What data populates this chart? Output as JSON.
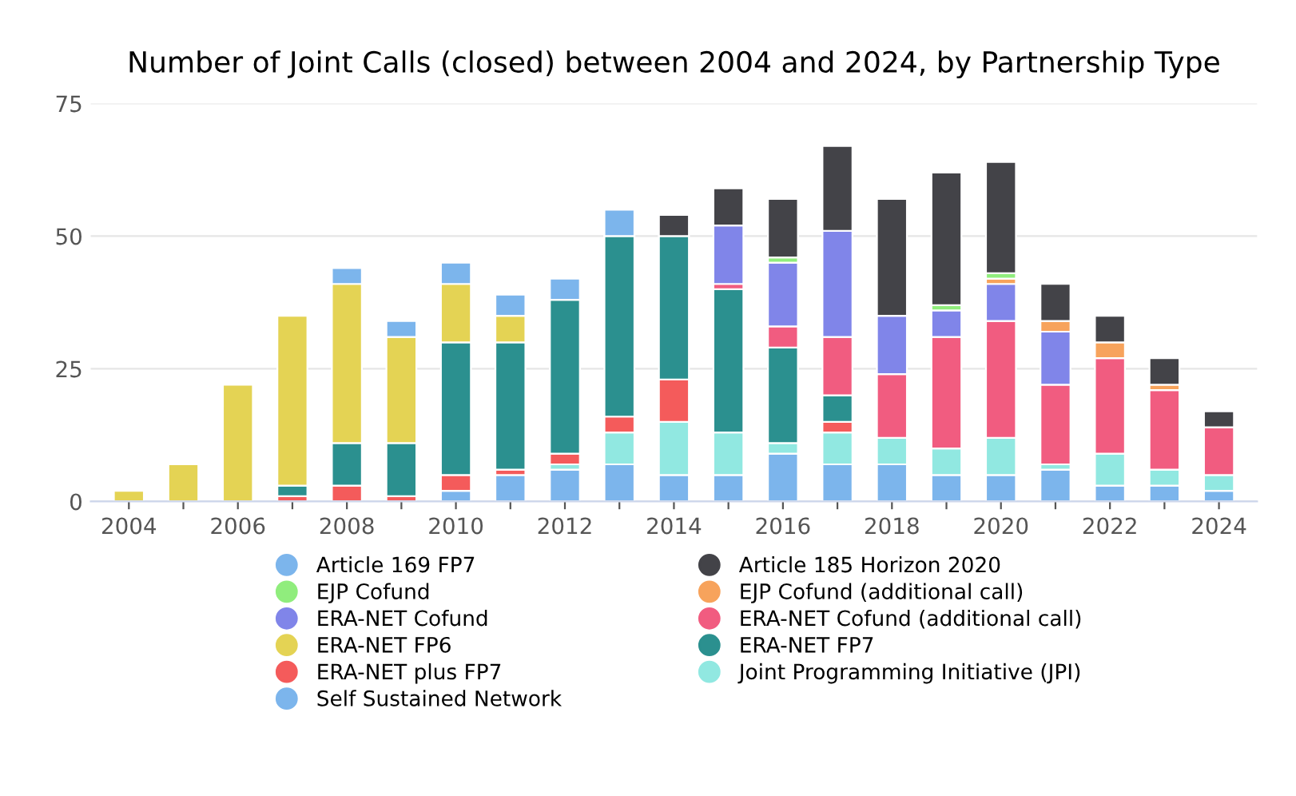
{
  "chart_data": {
    "type": "bar",
    "stacked": true,
    "title": "Number of Joint Calls (closed) between 2004 and 2024, by Partnership Type",
    "categories": [
      "2004",
      null,
      "2006",
      null,
      "2008",
      null,
      "2010",
      null,
      "2012",
      null,
      "2014",
      null,
      "2016",
      null,
      "2018",
      null,
      "2020",
      null,
      "2022",
      null,
      "2024"
    ],
    "series": [
      {
        "name": "Self Sustained Network",
        "color": "#7cb5ec",
        "values": [
          0,
          0,
          0,
          0,
          0,
          0,
          2,
          5,
          6,
          7,
          5,
          5,
          9,
          7,
          7,
          5,
          5,
          6,
          3,
          3,
          2
        ]
      },
      {
        "name": "Joint Programming Initiative (JPI)",
        "color": "#91e8e1",
        "values": [
          0,
          0,
          0,
          0,
          0,
          0,
          0,
          0,
          1,
          6,
          10,
          8,
          2,
          6,
          5,
          5,
          7,
          1,
          6,
          3,
          3
        ]
      },
      {
        "name": "ERA-NET plus FP7",
        "color": "#f45b5b",
        "values": [
          0,
          0,
          0,
          1,
          3,
          1,
          3,
          1,
          2,
          3,
          8,
          0,
          0,
          2,
          0,
          0,
          0,
          0,
          0,
          0,
          0
        ]
      },
      {
        "name": "ERA-NET FP7",
        "color": "#2b908f",
        "values": [
          0,
          0,
          0,
          2,
          8,
          10,
          25,
          24,
          29,
          34,
          27,
          27,
          18,
          5,
          0,
          0,
          0,
          0,
          0,
          0,
          0
        ]
      },
      {
        "name": "ERA-NET FP6",
        "color": "#e4d354",
        "values": [
          2,
          7,
          22,
          32,
          30,
          20,
          11,
          5,
          0,
          0,
          0,
          0,
          0,
          0,
          0,
          0,
          0,
          0,
          0,
          0,
          0
        ]
      },
      {
        "name": "ERA-NET Cofund (additional call)",
        "color": "#f15c80",
        "values": [
          0,
          0,
          0,
          0,
          0,
          0,
          0,
          0,
          0,
          0,
          0,
          1,
          4,
          11,
          12,
          21,
          22,
          15,
          18,
          15,
          9
        ]
      },
      {
        "name": "ERA-NET Cofund",
        "color": "#8085e9",
        "values": [
          0,
          0,
          0,
          0,
          0,
          0,
          0,
          0,
          0,
          0,
          0,
          11,
          12,
          20,
          11,
          5,
          7,
          10,
          0,
          0,
          0
        ]
      },
      {
        "name": "EJP Cofund (additional call)",
        "color": "#f7a35c",
        "values": [
          0,
          0,
          0,
          0,
          0,
          0,
          0,
          0,
          0,
          0,
          0,
          0,
          0,
          0,
          0,
          0,
          1,
          2,
          3,
          1,
          0
        ]
      },
      {
        "name": "EJP Cofund",
        "color": "#90ed7d",
        "values": [
          0,
          0,
          0,
          0,
          0,
          0,
          0,
          0,
          0,
          0,
          0,
          0,
          1,
          0,
          0,
          1,
          1,
          0,
          0,
          0,
          0
        ]
      },
      {
        "name": "Article 185 Horizon 2020",
        "color": "#434348",
        "values": [
          0,
          0,
          0,
          0,
          0,
          0,
          0,
          0,
          0,
          0,
          4,
          7,
          11,
          16,
          22,
          25,
          21,
          7,
          5,
          5,
          3
        ]
      },
      {
        "name": "Article 169 FP7",
        "color": "#7cb5ec",
        "values": [
          0,
          0,
          0,
          0,
          3,
          3,
          4,
          4,
          4,
          5,
          0,
          0,
          0,
          0,
          0,
          0,
          0,
          0,
          0,
          0,
          0
        ]
      }
    ],
    "ylim": [
      0,
      75
    ],
    "yticks": [
      0,
      25,
      50,
      75
    ],
    "grid": "y",
    "legend": "bottom"
  }
}
